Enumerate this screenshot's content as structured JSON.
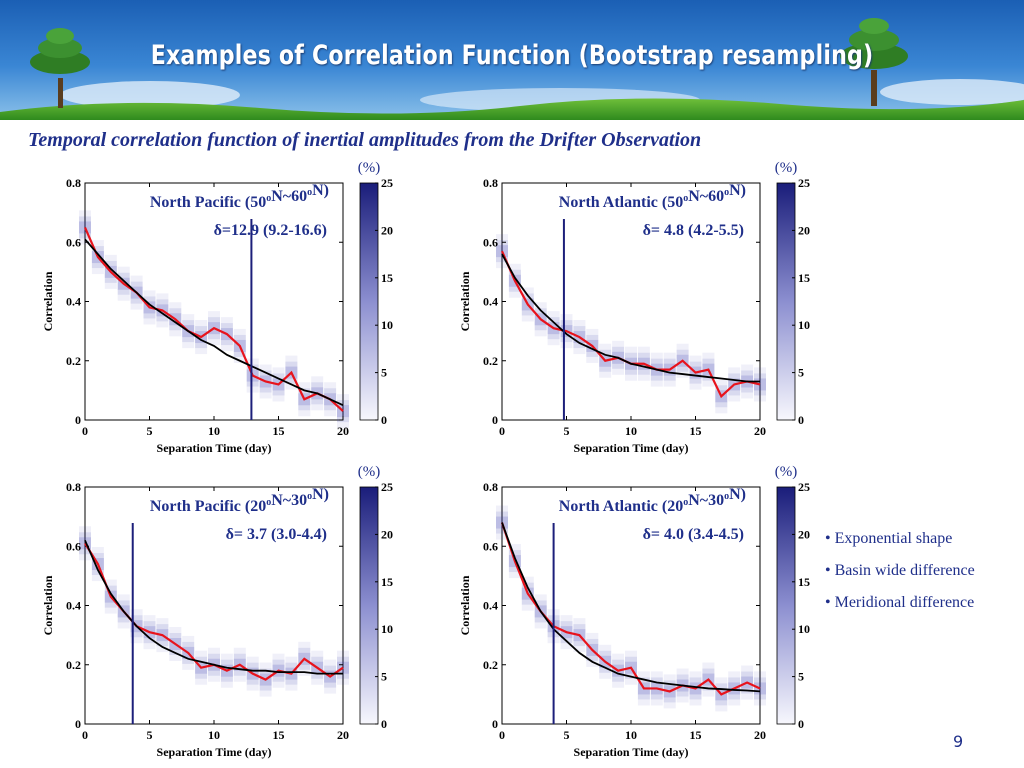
{
  "slide": {
    "title": "Examples of Correlation Function (Bootstrap resampling)",
    "subtitle": "Temporal correlation function of inertial amplitudes from the Drifter Observation",
    "page_number": "9",
    "bullets": [
      "• Exponential shape",
      "• Basin wide difference",
      "• Meridional difference"
    ]
  },
  "colors": {
    "title_text": "#ffffff",
    "accent_text": "#1f2f8a",
    "red_line": "#e8131c",
    "fit_line": "#000000",
    "delta_line": "#1c1f7a",
    "cloud": "#3a3fb0"
  },
  "chart_data": [
    {
      "type": "line",
      "region_label": "North Pacific (50",
      "region_mid": "N~60",
      "region_end": "N)",
      "degree": "o",
      "delta_label": "δ=12.9 (9.2-16.6)",
      "xlabel": "Separation Time (day)",
      "ylabel": "Correlation",
      "xlim": [
        0,
        20
      ],
      "ylim": [
        0,
        0.8
      ],
      "xticks": [
        "0",
        "5",
        "10",
        "15",
        "20"
      ],
      "yticks": [
        "0",
        "0.2",
        "0.4",
        "0.6",
        "0.8"
      ],
      "colorbar": {
        "unit": "(%)",
        "ticks": [
          "0",
          "5",
          "10",
          "15",
          "20",
          "25"
        ],
        "range": [
          0,
          25
        ]
      },
      "delta": 12.9,
      "series": [
        {
          "name": "",
          "x": [
            0,
            1,
            2,
            3,
            4,
            5,
            6,
            7,
            8,
            9,
            10,
            11,
            12,
            13,
            14,
            15,
            16,
            17,
            18,
            19,
            20
          ],
          "values": [
            0.65,
            0.55,
            0.5,
            0.46,
            0.43,
            0.38,
            0.37,
            0.34,
            0.3,
            0.28,
            0.31,
            0.29,
            0.25,
            0.15,
            0.13,
            0.12,
            0.16,
            0.07,
            0.09,
            0.07,
            0.03
          ]
        },
        {
          "name": "",
          "x": [
            0,
            1,
            2,
            3,
            4,
            5,
            6,
            7,
            8,
            9,
            10,
            11,
            12,
            13,
            14,
            15,
            16,
            17,
            18,
            19,
            20
          ],
          "values": [
            0.61,
            0.56,
            0.51,
            0.47,
            0.43,
            0.39,
            0.36,
            0.33,
            0.3,
            0.27,
            0.25,
            0.22,
            0.2,
            0.18,
            0.16,
            0.14,
            0.12,
            0.1,
            0.09,
            0.07,
            0.05
          ]
        }
      ]
    },
    {
      "type": "line",
      "region_label": "North Atlantic (50",
      "region_mid": "N~60",
      "region_end": "N)",
      "degree": "o",
      "delta_label": "δ= 4.8 (4.2-5.5)",
      "xlabel": "Separation Time (day)",
      "ylabel": "Correlation",
      "xlim": [
        0,
        20
      ],
      "ylim": [
        0,
        0.8
      ],
      "xticks": [
        "0",
        "5",
        "10",
        "15",
        "20"
      ],
      "yticks": [
        "0",
        "0.2",
        "0.4",
        "0.6",
        "0.8"
      ],
      "colorbar": {
        "unit": "(%)",
        "ticks": [
          "0",
          "5",
          "10",
          "15",
          "20",
          "25"
        ],
        "range": [
          0,
          25
        ]
      },
      "delta": 4.8,
      "series": [
        {
          "name": "",
          "x": [
            0,
            1,
            2,
            3,
            4,
            5,
            6,
            7,
            8,
            9,
            10,
            11,
            12,
            13,
            14,
            15,
            16,
            17,
            18,
            19,
            20
          ],
          "values": [
            0.57,
            0.47,
            0.39,
            0.34,
            0.31,
            0.3,
            0.28,
            0.25,
            0.2,
            0.21,
            0.19,
            0.19,
            0.17,
            0.17,
            0.2,
            0.16,
            0.17,
            0.08,
            0.12,
            0.13,
            0.12
          ]
        },
        {
          "name": "",
          "x": [
            0,
            1,
            2,
            3,
            4,
            5,
            6,
            7,
            8,
            9,
            10,
            11,
            12,
            13,
            14,
            15,
            16,
            17,
            18,
            19,
            20
          ],
          "values": [
            0.56,
            0.48,
            0.42,
            0.37,
            0.33,
            0.29,
            0.26,
            0.24,
            0.22,
            0.21,
            0.19,
            0.18,
            0.17,
            0.16,
            0.155,
            0.15,
            0.145,
            0.14,
            0.135,
            0.13,
            0.13
          ]
        }
      ]
    },
    {
      "type": "line",
      "region_label": "North Pacific (20",
      "region_mid": "N~30",
      "region_end": "N)",
      "degree": "o",
      "delta_label": "δ= 3.7 (3.0-4.4)",
      "xlabel": "Separation Time (day)",
      "ylabel": "Correlation",
      "xlim": [
        0,
        20
      ],
      "ylim": [
        0,
        0.8
      ],
      "xticks": [
        "0",
        "5",
        "10",
        "15",
        "20"
      ],
      "yticks": [
        "0",
        "0.2",
        "0.4",
        "0.6",
        "0.8"
      ],
      "colorbar": {
        "unit": "(%)",
        "ticks": [
          "0",
          "5",
          "10",
          "15",
          "20",
          "25"
        ],
        "range": [
          0,
          25
        ]
      },
      "delta": 3.7,
      "series": [
        {
          "name": "",
          "x": [
            0,
            1,
            2,
            3,
            4,
            5,
            6,
            7,
            8,
            9,
            10,
            11,
            12,
            13,
            14,
            15,
            16,
            17,
            18,
            19,
            20
          ],
          "values": [
            0.61,
            0.54,
            0.43,
            0.38,
            0.33,
            0.31,
            0.3,
            0.27,
            0.24,
            0.19,
            0.2,
            0.18,
            0.2,
            0.17,
            0.15,
            0.18,
            0.17,
            0.22,
            0.19,
            0.16,
            0.19
          ]
        },
        {
          "name": "",
          "x": [
            0,
            1,
            2,
            3,
            4,
            5,
            6,
            7,
            8,
            9,
            10,
            11,
            12,
            13,
            14,
            15,
            16,
            17,
            18,
            19,
            20
          ],
          "values": [
            0.62,
            0.52,
            0.44,
            0.38,
            0.33,
            0.29,
            0.26,
            0.24,
            0.22,
            0.21,
            0.2,
            0.19,
            0.185,
            0.18,
            0.18,
            0.175,
            0.175,
            0.175,
            0.17,
            0.17,
            0.17
          ]
        }
      ]
    },
    {
      "type": "line",
      "region_label": "North Atlantic (20",
      "region_mid": "N~30",
      "region_end": "N)",
      "degree": "o",
      "delta_label": "δ= 4.0 (3.4-4.5)",
      "xlabel": "Separation Time (day)",
      "ylabel": "Correlation",
      "xlim": [
        0,
        20
      ],
      "ylim": [
        0,
        0.8
      ],
      "xticks": [
        "0",
        "5",
        "10",
        "15",
        "20"
      ],
      "yticks": [
        "0",
        "0.2",
        "0.4",
        "0.6",
        "0.8"
      ],
      "colorbar": {
        "unit": "(%)",
        "ticks": [
          "0",
          "5",
          "10",
          "15",
          "20",
          "25"
        ],
        "range": [
          0,
          25
        ]
      },
      "delta": 4.0,
      "series": [
        {
          "name": "",
          "x": [
            0,
            1,
            2,
            3,
            4,
            5,
            6,
            7,
            8,
            9,
            10,
            11,
            12,
            13,
            14,
            15,
            16,
            17,
            18,
            19,
            20
          ],
          "values": [
            0.68,
            0.55,
            0.44,
            0.38,
            0.33,
            0.31,
            0.3,
            0.25,
            0.21,
            0.18,
            0.19,
            0.12,
            0.12,
            0.11,
            0.13,
            0.12,
            0.15,
            0.1,
            0.12,
            0.14,
            0.12
          ]
        },
        {
          "name": "",
          "x": [
            0,
            1,
            2,
            3,
            4,
            5,
            6,
            7,
            8,
            9,
            10,
            11,
            12,
            13,
            14,
            15,
            16,
            17,
            18,
            19,
            20
          ],
          "values": [
            0.68,
            0.56,
            0.46,
            0.38,
            0.32,
            0.28,
            0.24,
            0.21,
            0.19,
            0.17,
            0.16,
            0.15,
            0.14,
            0.135,
            0.13,
            0.125,
            0.12,
            0.118,
            0.115,
            0.113,
            0.11
          ]
        }
      ]
    }
  ]
}
